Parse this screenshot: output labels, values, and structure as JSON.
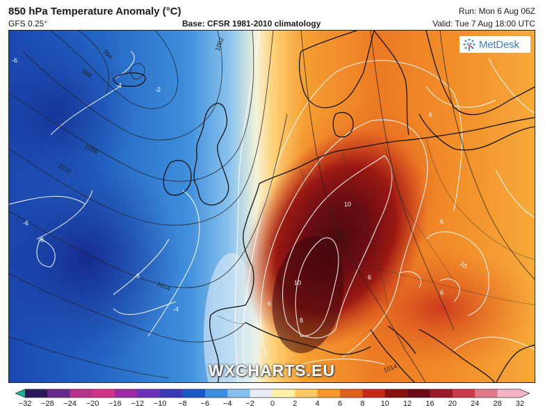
{
  "header": {
    "title": "850 hPa Temperature Anomaly (°C)",
    "model": "GFS 0.25°",
    "base": "Base: CFSR 1981-2010 climatology",
    "run": "Run: Mon 6 Aug 06Z",
    "valid": "Valid: Tue 7 Aug 18:00 UTC"
  },
  "logo": {
    "text": "MetDesk",
    "icon": "globe-dots-icon"
  },
  "watermark": "WXCHARTS.EU",
  "isobars": [
    "994",
    "998",
    "1002",
    "1006",
    "1010",
    "1014",
    "1014"
  ],
  "anomaly_labels": [
    "-6",
    "-4",
    "-2",
    "-6",
    "-8",
    "-6",
    "-4",
    "10",
    "10",
    "8",
    "6",
    "6",
    "6",
    "6",
    "6",
    "10"
  ],
  "colorbar": {
    "ticks": [
      "−32",
      "−28",
      "−24",
      "−20",
      "−16",
      "−12",
      "−10",
      "−8",
      "−6",
      "−4",
      "−2",
      "0",
      "2",
      "4",
      "6",
      "8",
      "10",
      "12",
      "16",
      "20",
      "24",
      "28",
      "32"
    ],
    "colors": [
      "#17b39a",
      "#2a1a5a",
      "#6a2a8a",
      "#b8328a",
      "#d0328a",
      "#9a2aa6",
      "#6a30b8",
      "#3a3ab8",
      "#1a58c8",
      "#3c8ee0",
      "#84c0f0",
      "#e8eef4",
      "#fff2a8",
      "#ffc860",
      "#f7972a",
      "#e0601e",
      "#c8281a",
      "#8a1010",
      "#6a0a14",
      "#9a1a2a",
      "#cc3a4a",
      "#e07a8a",
      "#f5b5c5"
    ]
  }
}
